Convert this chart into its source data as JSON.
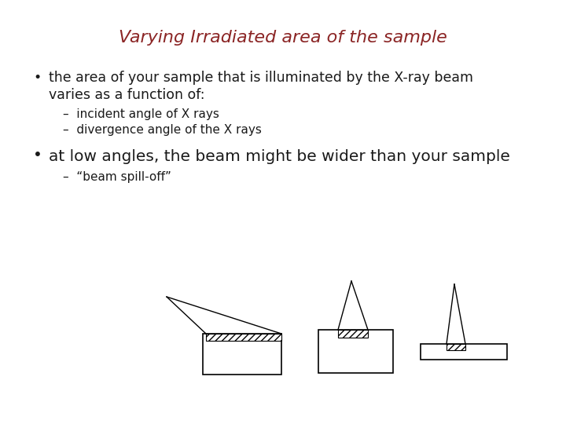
{
  "title": "Varying Irradiated area of the sample",
  "title_color": "#8B2525",
  "title_fontsize": 16,
  "bg_color": "#ffffff",
  "bullet1_main1": "the area of your sample that is illuminated by the X-ray beam",
  "bullet1_main2": "varies as a function of:",
  "bullet1_sub1": "incident angle of X rays",
  "bullet1_sub2": "divergence angle of the X rays",
  "bullet2_main": "at low angles, the beam might be wider than your sample",
  "bullet2_sub1": "“beam spill-off”",
  "text_color": "#1a1a1a",
  "text_fontsize": 12.5,
  "sub_fontsize": 11.0,
  "bullet2_fontsize": 14.5
}
